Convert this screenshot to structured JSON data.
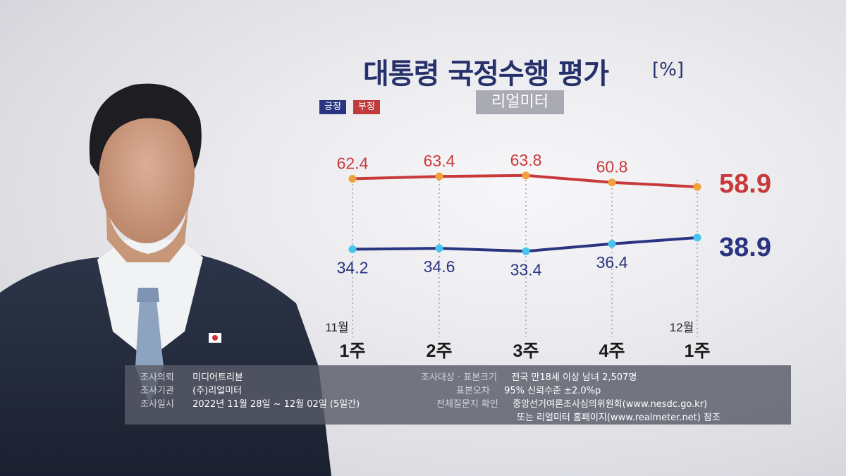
{
  "header": {
    "title": "대통령 국정수행 평가",
    "unit": "[%]",
    "source": "리얼미터"
  },
  "chart_data": {
    "type": "line",
    "title": "대통령 국정수행 평가",
    "unit": "[%]",
    "categories": [
      "1주",
      "2주",
      "3주",
      "4주",
      "1주"
    ],
    "month_labels": [
      {
        "index": 0,
        "label": "11월"
      },
      {
        "index": 4,
        "label": "12월"
      }
    ],
    "series": [
      {
        "name": "부정",
        "color": "#c8393b",
        "marker_color": "#f0a23a",
        "values": [
          62.4,
          63.4,
          63.8,
          60.8,
          58.9
        ]
      },
      {
        "name": "긍정",
        "color": "#2a3480",
        "marker_color": "#46c6ee",
        "values": [
          34.2,
          34.6,
          33.4,
          36.4,
          38.9
        ]
      }
    ],
    "legend": [
      "긍정",
      "부정"
    ],
    "grid": "vertical dotted",
    "ylim": [
      30,
      65
    ]
  },
  "survey_info": {
    "left": [
      {
        "label": "조사의뢰",
        "value": "미디어트리뷴"
      },
      {
        "label": "조사기관",
        "value": "(주)리얼미터"
      },
      {
        "label": "조사일시",
        "value": "2022년 11월 28일 ~ 12월 02일 (5일간)"
      }
    ],
    "right": [
      {
        "label": "조사대상 · 표본크기",
        "value": "전국 만18세 이상 남녀 2,507명"
      },
      {
        "label": "표본오차",
        "value": "95% 신뢰수준 ±2.0%p"
      },
      {
        "label": "전체질문지 확인",
        "value": "중앙선거여론조사심의위원회(www.nesdc.go.kr)"
      },
      {
        "label": "",
        "value": "또는 리얼미터 홈페이지(www.realmeter.net) 참조"
      }
    ]
  }
}
